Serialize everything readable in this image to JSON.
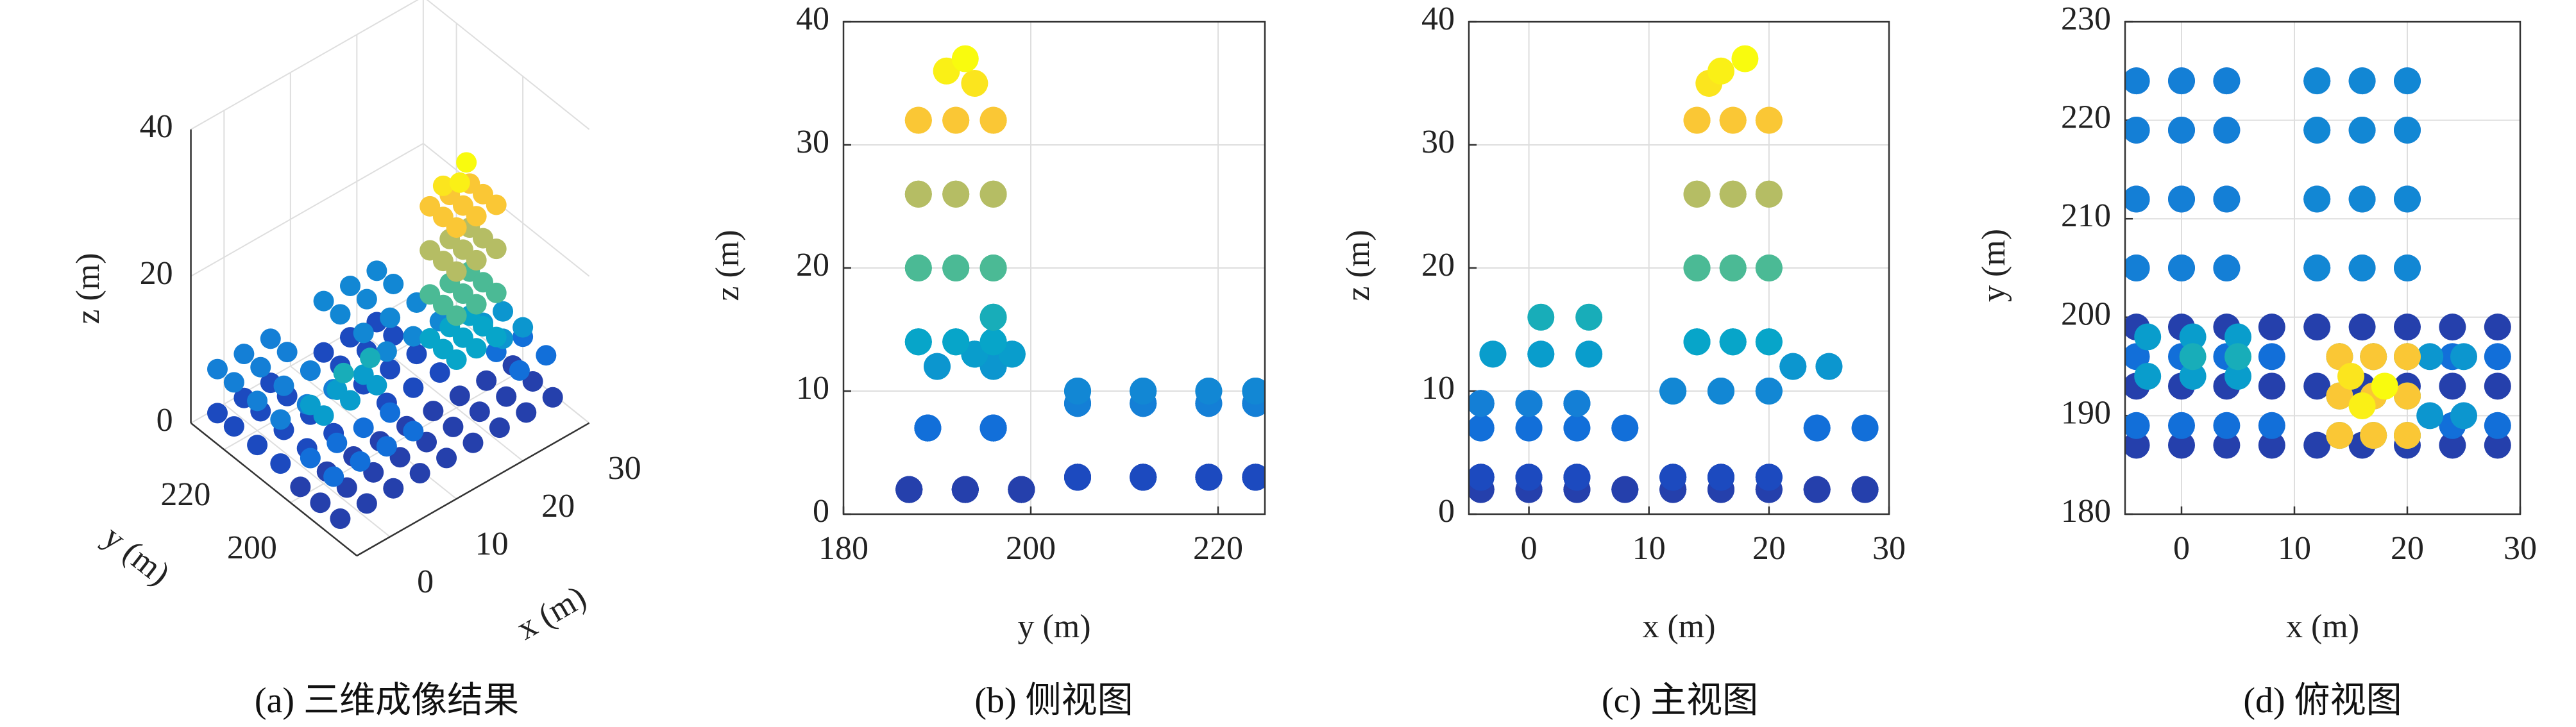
{
  "point_cloud": {
    "colormap": [
      "#352a87",
      "#0f5cdd",
      "#1481d6",
      "#06a4ca",
      "#2eb7a4",
      "#87bf77",
      "#d1bb59",
      "#fec832",
      "#f9fb0e"
    ],
    "clim": [
      0,
      37
    ],
    "points": [
      [
        -4,
        187,
        2
      ],
      [
        0,
        187,
        2
      ],
      [
        4,
        187,
        2
      ],
      [
        8,
        187,
        2
      ],
      [
        12,
        187,
        2
      ],
      [
        16,
        187,
        2
      ],
      [
        20,
        187,
        2
      ],
      [
        24,
        187,
        2
      ],
      [
        28,
        187,
        2
      ],
      [
        -4,
        193,
        2
      ],
      [
        0,
        193,
        2
      ],
      [
        4,
        193,
        2
      ],
      [
        8,
        193,
        2
      ],
      [
        12,
        193,
        2
      ],
      [
        16,
        193,
        2
      ],
      [
        20,
        193,
        2
      ],
      [
        24,
        193,
        2
      ],
      [
        28,
        193,
        2
      ],
      [
        -4,
        199,
        2
      ],
      [
        0,
        199,
        2
      ],
      [
        4,
        199,
        2
      ],
      [
        8,
        199,
        2
      ],
      [
        12,
        199,
        2
      ],
      [
        16,
        199,
        2
      ],
      [
        20,
        199,
        2
      ],
      [
        24,
        199,
        2
      ],
      [
        28,
        199,
        2
      ],
      [
        -4,
        205,
        3
      ],
      [
        0,
        205,
        3
      ],
      [
        4,
        205,
        3
      ],
      [
        12,
        205,
        3
      ],
      [
        16,
        205,
        3
      ],
      [
        20,
        205,
        3
      ],
      [
        -4,
        212,
        3
      ],
      [
        0,
        212,
        3
      ],
      [
        4,
        212,
        3
      ],
      [
        12,
        212,
        3
      ],
      [
        16,
        212,
        3
      ],
      [
        20,
        212,
        3
      ],
      [
        -4,
        219,
        3
      ],
      [
        0,
        219,
        3
      ],
      [
        4,
        219,
        3
      ],
      [
        12,
        219,
        3
      ],
      [
        16,
        219,
        3
      ],
      [
        20,
        219,
        3
      ],
      [
        -4,
        224,
        3
      ],
      [
        0,
        224,
        3
      ],
      [
        4,
        224,
        3
      ],
      [
        12,
        224,
        3
      ],
      [
        16,
        224,
        3
      ],
      [
        20,
        224,
        3
      ],
      [
        -4,
        189,
        7
      ],
      [
        0,
        189,
        7
      ],
      [
        4,
        189,
        7
      ],
      [
        8,
        189,
        7
      ],
      [
        24,
        189,
        7
      ],
      [
        28,
        189,
        7
      ],
      [
        -4,
        196,
        7
      ],
      [
        0,
        196,
        7
      ],
      [
        4,
        196,
        7
      ],
      [
        8,
        196,
        7
      ],
      [
        24,
        196,
        7
      ],
      [
        28,
        196,
        7
      ],
      [
        -4,
        205,
        9
      ],
      [
        0,
        205,
        9
      ],
      [
        4,
        205,
        9
      ],
      [
        -4,
        212,
        9
      ],
      [
        0,
        212,
        9
      ],
      [
        4,
        212,
        9
      ],
      [
        -4,
        219,
        9
      ],
      [
        0,
        219,
        9
      ],
      [
        4,
        219,
        9
      ],
      [
        -4,
        224,
        9
      ],
      [
        0,
        224,
        9
      ],
      [
        4,
        224,
        9
      ],
      [
        12,
        205,
        10
      ],
      [
        16,
        205,
        10
      ],
      [
        20,
        205,
        10
      ],
      [
        12,
        212,
        10
      ],
      [
        16,
        212,
        10
      ],
      [
        20,
        212,
        10
      ],
      [
        12,
        219,
        10
      ],
      [
        16,
        219,
        10
      ],
      [
        20,
        219,
        10
      ],
      [
        12,
        224,
        10
      ],
      [
        16,
        224,
        10
      ],
      [
        20,
        224,
        10
      ],
      [
        22,
        190,
        12
      ],
      [
        25,
        190,
        12
      ],
      [
        22,
        196,
        12
      ],
      [
        25,
        196,
        12
      ],
      [
        -3,
        194,
        13
      ],
      [
        1,
        194,
        13
      ],
      [
        5,
        194,
        13
      ],
      [
        -3,
        198,
        13
      ],
      [
        1,
        198,
        13
      ],
      [
        5,
        198,
        13
      ],
      [
        14,
        188,
        14
      ],
      [
        17,
        188,
        14
      ],
      [
        20,
        188,
        14
      ],
      [
        14,
        192,
        14
      ],
      [
        17,
        192,
        14
      ],
      [
        20,
        192,
        14
      ],
      [
        14,
        196,
        14
      ],
      [
        17,
        196,
        14
      ],
      [
        20,
        196,
        14
      ],
      [
        1,
        196,
        16
      ],
      [
        5,
        196,
        16
      ],
      [
        14,
        188,
        20
      ],
      [
        17,
        188,
        20
      ],
      [
        20,
        188,
        20
      ],
      [
        14,
        192,
        20
      ],
      [
        17,
        192,
        20
      ],
      [
        20,
        192,
        20
      ],
      [
        14,
        196,
        20
      ],
      [
        17,
        196,
        20
      ],
      [
        20,
        196,
        20
      ],
      [
        14,
        188,
        26
      ],
      [
        17,
        188,
        26
      ],
      [
        20,
        188,
        26
      ],
      [
        14,
        192,
        26
      ],
      [
        17,
        192,
        26
      ],
      [
        20,
        192,
        26
      ],
      [
        14,
        196,
        26
      ],
      [
        17,
        196,
        26
      ],
      [
        20,
        196,
        26
      ],
      [
        14,
        188,
        32
      ],
      [
        17,
        188,
        32
      ],
      [
        20,
        188,
        32
      ],
      [
        14,
        192,
        32
      ],
      [
        17,
        192,
        32
      ],
      [
        20,
        192,
        32
      ],
      [
        14,
        196,
        32
      ],
      [
        17,
        196,
        32
      ],
      [
        20,
        196,
        32
      ],
      [
        15,
        194,
        35
      ],
      [
        16,
        191,
        36
      ],
      [
        18,
        193,
        37
      ]
    ]
  },
  "chart_data": [
    {
      "type": "scatter3d",
      "caption": "(a) 三维成像结果",
      "axes": [
        "x",
        "y",
        "z"
      ],
      "xlabel": "x (m)",
      "ylabel": "y (m)",
      "zlabel": "z (m)",
      "xlim": [
        -5,
        30
      ],
      "ylim": [
        180,
        230
      ],
      "zlim": [
        0,
        40
      ],
      "xticks": [
        0,
        10,
        20,
        30
      ],
      "yticks": [
        200,
        220
      ],
      "zticks": [
        0,
        20,
        40
      ],
      "grid": true
    },
    {
      "type": "scatter",
      "caption": "(b) 侧视图",
      "axes": [
        "y",
        "z"
      ],
      "xlabel": "y (m)",
      "ylabel": "z (m)",
      "xlim": [
        180,
        225
      ],
      "ylim": [
        0,
        40
      ],
      "xticks": [
        180,
        200,
        220
      ],
      "yticks": [
        0,
        10,
        20,
        30,
        40
      ],
      "grid": true
    },
    {
      "type": "scatter",
      "caption": "(c) 主视图",
      "axes": [
        "x",
        "z"
      ],
      "xlabel": "x (m)",
      "ylabel": "z (m)",
      "xlim": [
        -5,
        30
      ],
      "ylim": [
        0,
        40
      ],
      "xticks": [
        0,
        10,
        20,
        30
      ],
      "yticks": [
        0,
        10,
        20,
        30,
        40
      ],
      "grid": true
    },
    {
      "type": "scatter",
      "caption": "(d) 俯视图",
      "axes": [
        "x",
        "y"
      ],
      "xlabel": "x (m)",
      "ylabel": "y (m)",
      "xlim": [
        -5,
        30
      ],
      "ylim": [
        180,
        230
      ],
      "xticks": [
        0,
        10,
        20,
        30
      ],
      "yticks": [
        180,
        190,
        200,
        210,
        220,
        230
      ],
      "grid": true
    }
  ]
}
